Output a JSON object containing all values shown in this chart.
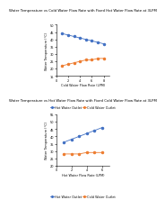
{
  "title1": "Water Temperature vs Cold Water Flow Rate with Fixed Hot Water Flow Rate at 3LPM",
  "title2": "Water Temperature vs Hot Water Flow Rate with Fixed Cold Water Flow Rate at 3LPM",
  "xlabel1": "Cold Water Flow Rate (LPM)",
  "xlabel2": "Hot Water Flow Rate (LPM)",
  "ylabel": "Water Temperature (°C)",
  "cold_flow_rates": [
    1,
    2,
    3,
    4,
    5,
    6,
    7,
    8
  ],
  "hot_flow_rates": [
    1,
    2,
    3,
    4,
    5,
    6
  ],
  "hot_outlet_temps_chart1": [
    44,
    43,
    42,
    41,
    40,
    39,
    38,
    37
  ],
  "cold_outlet_temps_chart1": [
    22,
    23,
    24,
    25,
    26,
    26,
    27,
    27
  ],
  "hot_outlet_temps_chart2": [
    36,
    38,
    40,
    42,
    44,
    46
  ],
  "cold_outlet_temps_chart2": [
    28,
    28,
    28,
    29,
    29,
    29
  ],
  "color_hot": "#4472C4",
  "color_cold": "#ED7D31",
  "legend_hot": "Hot Water Outlet",
  "legend_cold": "Cold Water Outlet",
  "marker": "o",
  "linewidth": 0.6,
  "markersize": 1.5,
  "title_fontsize": 2.8,
  "label_fontsize": 2.5,
  "tick_fontsize": 2.5,
  "legend_fontsize": 2.5
}
